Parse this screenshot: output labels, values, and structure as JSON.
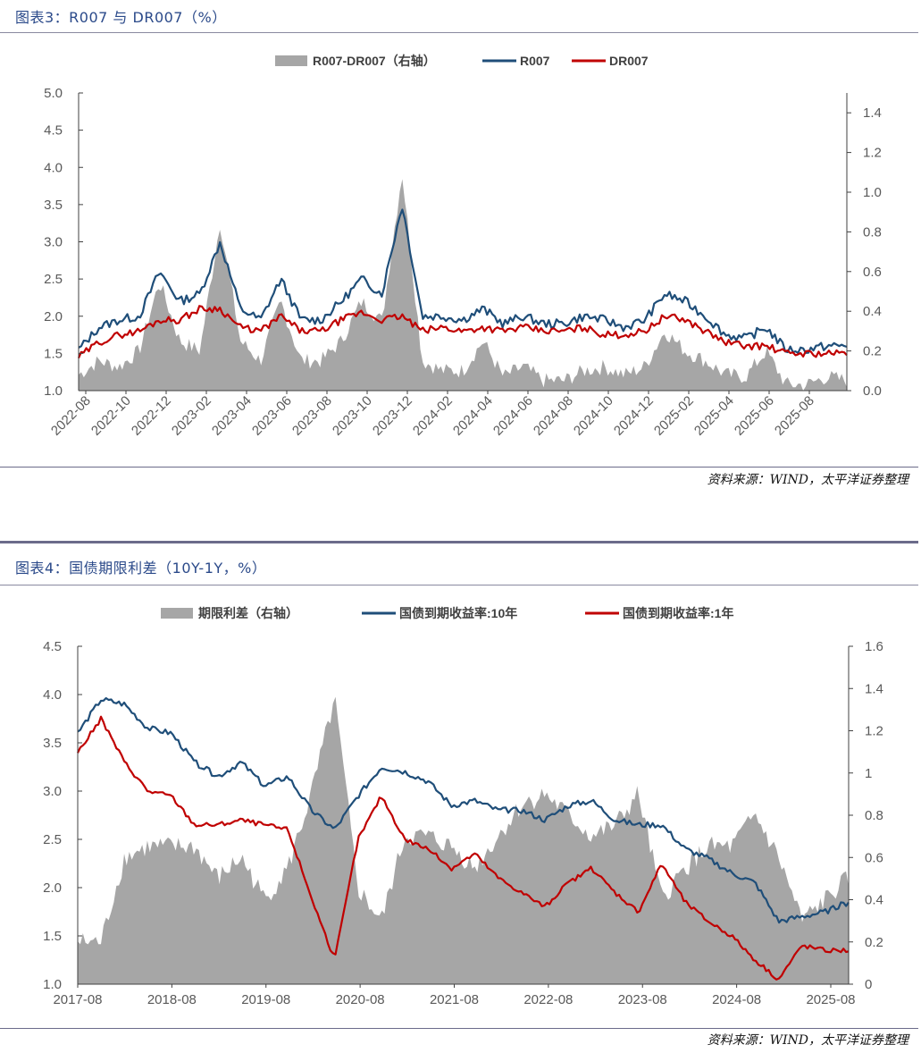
{
  "charts": [
    {
      "title": "图表3：R007 与 DR007（%）",
      "source": "资料来源：WIND，太平洋证券整理",
      "legend": [
        "R007-DR007（右轴）",
        "R007",
        "DR007"
      ],
      "colors": {
        "spread": "#a6a6a6",
        "series1": "#1f4e79",
        "series2": "#c00000"
      },
      "left_axis": {
        "min": 1.0,
        "max": 5.0,
        "ticks": [
          "1.0",
          "1.5",
          "2.0",
          "2.5",
          "3.0",
          "3.5",
          "4.0",
          "4.5",
          "5.0"
        ],
        "tick_values": [
          1.0,
          1.5,
          2.0,
          2.5,
          3.0,
          3.5,
          4.0,
          4.5,
          5.0
        ]
      },
      "right_axis": {
        "min": 0.0,
        "max": 1.5,
        "ticks": [
          "0.0",
          "0.2",
          "0.4",
          "0.6",
          "0.8",
          "1.0",
          "1.2",
          "1.4"
        ],
        "tick_values": [
          0.0,
          0.2,
          0.4,
          0.6,
          0.8,
          1.0,
          1.2,
          1.4
        ]
      },
      "x_labels": [
        "2022-08",
        "2022-10",
        "2022-12",
        "2023-02",
        "2023-04",
        "2023-06",
        "2023-08",
        "2023-10",
        "2023-12",
        "2024-02",
        "2024-04",
        "2024-06",
        "2024-08",
        "2024-10",
        "2024-12",
        "2025-02",
        "2025-04",
        "2025-06",
        "2025-08"
      ]
    },
    {
      "title": "图表4：国债期限利差（10Y-1Y，%）",
      "source": "资料来源：WIND，太平洋证券整理",
      "legend": [
        "期限利差（右轴）",
        "国债到期收益率:10年",
        "国债到期收益率:1年"
      ],
      "colors": {
        "spread": "#a6a6a6",
        "series1": "#1f4e79",
        "series2": "#c00000"
      },
      "left_axis": {
        "min": 1.0,
        "max": 4.5,
        "ticks": [
          "1.0",
          "1.5",
          "2.0",
          "2.5",
          "3.0",
          "3.5",
          "4.0",
          "4.5"
        ],
        "tick_values": [
          1.0,
          1.5,
          2.0,
          2.5,
          3.0,
          3.5,
          4.0,
          4.5
        ]
      },
      "right_axis": {
        "min": 0.0,
        "max": 1.6,
        "ticks": [
          "0",
          "0.2",
          "0.4",
          "0.6",
          "0.8",
          "1",
          "1.2",
          "1.4",
          "1.6"
        ],
        "tick_values": [
          0,
          0.2,
          0.4,
          0.6,
          0.8,
          1.0,
          1.2,
          1.4,
          1.6
        ]
      },
      "x_labels": [
        "2017-08",
        "2018-08",
        "2019-08",
        "2020-08",
        "2021-08",
        "2022-08",
        "2023-08",
        "2024-08",
        "2025-08"
      ]
    }
  ],
  "chart_data": [
    {
      "type": "line",
      "title": "R007 与 DR007（%）",
      "x": [
        "2022-08",
        "2022-09",
        "2022-10",
        "2022-11",
        "2022-12",
        "2023-01",
        "2023-02",
        "2023-03",
        "2023-04",
        "2023-05",
        "2023-06",
        "2023-07",
        "2023-08",
        "2023-09",
        "2023-10",
        "2023-11",
        "2023-12",
        "2024-01",
        "2024-02",
        "2024-03",
        "2024-04",
        "2024-05",
        "2024-06",
        "2024-07",
        "2024-08",
        "2024-09",
        "2024-10",
        "2024-11",
        "2024-12",
        "2025-01",
        "2025-02",
        "2025-03",
        "2025-04",
        "2025-05",
        "2025-06",
        "2025-07",
        "2025-08",
        "2025-09",
        "2025-10"
      ],
      "series": [
        {
          "name": "R007",
          "axis": "left",
          "values": [
            1.55,
            1.85,
            1.95,
            2.0,
            2.6,
            2.2,
            2.3,
            3.0,
            2.1,
            1.95,
            2.5,
            1.95,
            1.95,
            2.2,
            2.5,
            2.3,
            3.5,
            2.0,
            2.0,
            1.95,
            2.1,
            1.9,
            2.0,
            1.9,
            1.9,
            2.0,
            1.95,
            1.85,
            1.95,
            2.3,
            2.2,
            2.0,
            1.75,
            1.7,
            1.85,
            1.55,
            1.55,
            1.6,
            1.6
          ]
        },
        {
          "name": "DR007",
          "axis": "left",
          "values": [
            1.45,
            1.65,
            1.75,
            1.8,
            1.95,
            1.95,
            2.1,
            2.1,
            1.85,
            1.8,
            2.0,
            1.8,
            1.8,
            1.95,
            2.05,
            1.95,
            2.0,
            1.8,
            1.85,
            1.8,
            1.85,
            1.8,
            1.85,
            1.8,
            1.8,
            1.85,
            1.75,
            1.75,
            1.8,
            2.0,
            1.95,
            1.8,
            1.65,
            1.6,
            1.6,
            1.5,
            1.5,
            1.5,
            1.5
          ]
        },
        {
          "name": "R007-DR007（右轴）",
          "axis": "right",
          "type": "area",
          "values": [
            0.08,
            0.15,
            0.12,
            0.2,
            0.55,
            0.25,
            0.2,
            0.85,
            0.25,
            0.15,
            0.45,
            0.15,
            0.15,
            0.25,
            0.45,
            0.35,
            1.1,
            0.15,
            0.1,
            0.1,
            0.25,
            0.07,
            0.12,
            0.05,
            0.05,
            0.1,
            0.12,
            0.08,
            0.12,
            0.3,
            0.2,
            0.15,
            0.08,
            0.07,
            0.2,
            0.03,
            0.03,
            0.07,
            0.05
          ]
        }
      ],
      "ylim_left": [
        1.0,
        5.0
      ],
      "ylim_right": [
        0.0,
        1.5
      ],
      "legend": "top-center"
    },
    {
      "type": "line",
      "title": "国债期限利差（10Y-1Y，%）",
      "x": [
        "2017-08",
        "2017-11",
        "2018-02",
        "2018-05",
        "2018-08",
        "2018-11",
        "2019-02",
        "2019-05",
        "2019-08",
        "2019-11",
        "2020-02",
        "2020-05",
        "2020-08",
        "2020-11",
        "2021-02",
        "2021-05",
        "2021-08",
        "2021-11",
        "2022-02",
        "2022-05",
        "2022-08",
        "2022-11",
        "2023-02",
        "2023-05",
        "2023-08",
        "2023-11",
        "2024-02",
        "2024-05",
        "2024-08",
        "2024-11",
        "2025-02",
        "2025-05",
        "2025-08",
        "2025-10"
      ],
      "series": [
        {
          "name": "国债到期收益率:10年",
          "axis": "left",
          "values": [
            3.6,
            3.95,
            3.9,
            3.65,
            3.6,
            3.3,
            3.15,
            3.3,
            3.05,
            3.15,
            2.8,
            2.6,
            2.95,
            3.25,
            3.2,
            3.1,
            2.85,
            2.9,
            2.8,
            2.8,
            2.7,
            2.85,
            2.9,
            2.7,
            2.65,
            2.65,
            2.4,
            2.3,
            2.15,
            2.05,
            1.65,
            1.7,
            1.75,
            1.85
          ]
        },
        {
          "name": "国债到期收益率:1年",
          "axis": "left",
          "values": [
            3.4,
            3.75,
            3.3,
            3.0,
            2.95,
            2.65,
            2.65,
            2.7,
            2.65,
            2.6,
            1.9,
            1.25,
            2.5,
            2.95,
            2.5,
            2.4,
            2.2,
            2.35,
            2.1,
            1.95,
            1.8,
            2.05,
            2.2,
            1.95,
            1.75,
            2.25,
            1.85,
            1.65,
            1.5,
            1.25,
            1.05,
            1.4,
            1.35,
            1.35
          ]
        },
        {
          "name": "期限利差（右轴）",
          "axis": "right",
          "type": "area",
          "values": [
            0.2,
            0.2,
            0.6,
            0.65,
            0.65,
            0.65,
            0.5,
            0.6,
            0.4,
            0.55,
            0.9,
            1.35,
            0.45,
            0.3,
            0.7,
            0.7,
            0.65,
            0.55,
            0.7,
            0.85,
            0.9,
            0.8,
            0.7,
            0.75,
            0.9,
            0.4,
            0.55,
            0.65,
            0.65,
            0.8,
            0.6,
            0.3,
            0.4,
            0.5
          ]
        }
      ],
      "ylim_left": [
        1.0,
        4.5
      ],
      "ylim_right": [
        0.0,
        1.6
      ],
      "legend": "top-center"
    }
  ]
}
